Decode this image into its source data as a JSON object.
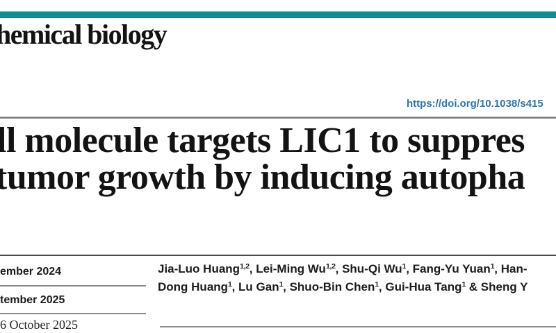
{
  "brand": {
    "journal_name_fragment": "hemical biology",
    "accent_color": "#0e8d96"
  },
  "doi": {
    "link_text": "https://doi.org/10.1038/s415",
    "link_color": "#2b76b6"
  },
  "title": {
    "line1": "ll molecule targets LIC1 to suppres",
    "line2": "tumor growth by inducing autopha"
  },
  "dates": [
    {
      "text": "ember 2024"
    },
    {
      "text": "tember 2025"
    },
    {
      "text": "6 October 2025"
    }
  ],
  "authors": {
    "line1": [
      {
        "text": "Jia-Luo Huang",
        "sup": "1,2"
      },
      {
        "text": ", Lei-Ming Wu",
        "sup": "1,2"
      },
      {
        "text": ", Shu-Qi Wu",
        "sup": "1"
      },
      {
        "text": ", Fang-Yu Yuan",
        "sup": "1"
      },
      {
        "text": ", Han-",
        "sup": ""
      }
    ],
    "line2": [
      {
        "text": "Dong Huang",
        "sup": "1"
      },
      {
        "text": ", Lu Gan",
        "sup": "1"
      },
      {
        "text": ", Shuo-Bin Chen",
        "sup": "1"
      },
      {
        "text": ", Gui-Hua Tang",
        "sup": "1"
      },
      {
        "text": " & Sheng Y",
        "sup": ""
      }
    ]
  }
}
